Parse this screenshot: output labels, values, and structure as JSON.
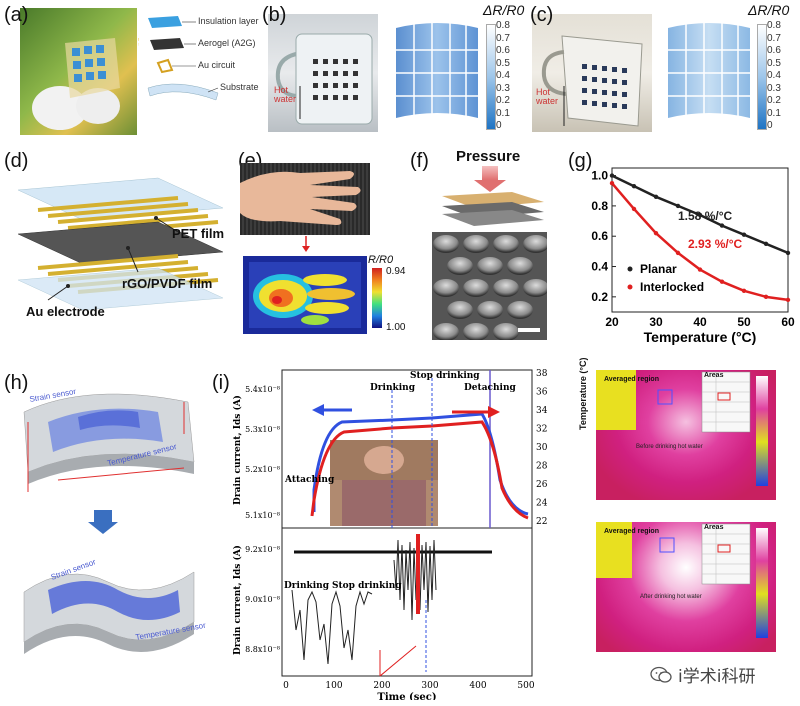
{
  "panels": {
    "a": {
      "label": "(a)",
      "layers": [
        "Insulation layer",
        "Aerogel (A2G)",
        "Au circuit",
        "Substrate"
      ]
    },
    "b": {
      "label": "(b)",
      "hot_water": "Hot\nwater",
      "colorbar_title": "ΔR/R0",
      "ticks": [
        "0.8",
        "0.7",
        "0.6",
        "0.5",
        "0.4",
        "0.3",
        "0.2",
        "0.1",
        "0"
      ]
    },
    "c": {
      "label": "(c)",
      "hot_water": "Hot\nwater",
      "colorbar_title": "ΔR/R0",
      "ticks": [
        "0.8",
        "0.7",
        "0.6",
        "0.5",
        "0.4",
        "0.3",
        "0.2",
        "0.1",
        "0"
      ]
    },
    "d": {
      "label": "(d)",
      "pet": "PET film",
      "rgo": "rGO/PVDF film",
      "au": "Au electrode"
    },
    "e": {
      "label": "(e)",
      "cb_title": "R/R0",
      "cb_top": "0.94",
      "cb_bottom": "1.00"
    },
    "f": {
      "label": "(f)",
      "pressure": "Pressure"
    },
    "g": {
      "label": "(g)",
      "annotation_planar": "1.58 %/°C",
      "annotation_interlocked": "2.93 %/°C",
      "legend": [
        "Planar",
        "Interlocked"
      ],
      "xlabel": "Temperature (°C)",
      "xticks": [
        "20",
        "30",
        "40",
        "50",
        "60"
      ],
      "yticks": [
        "0.2",
        "0.4",
        "0.6",
        "0.8",
        "1.0"
      ]
    },
    "h": {
      "label": "(h)",
      "strain": "Strain sensor",
      "temp": "Temperature sensor"
    },
    "i": {
      "label": "(i)",
      "ylabel_top": "Drain current, Ids (A)",
      "ylabel_bottom": "Drain current, Ids (A)",
      "xlabel": "Time (sec)",
      "top_yticks": [
        "5.4x10⁻⁸",
        "5.3x10⁻⁸",
        "5.2x10⁻⁸",
        "5.1x10⁻⁸"
      ],
      "right_yticks": [
        "38",
        "36",
        "34",
        "32",
        "30",
        "28",
        "26",
        "24",
        "22"
      ],
      "bottom_yticks": [
        "9.2x10⁻⁸",
        "9.0x10⁻⁸",
        "8.8x10⁻⁸"
      ],
      "xticks": [
        "0",
        "100",
        "200",
        "300",
        "400",
        "500"
      ],
      "ann_attaching": "Attaching",
      "ann_drinking": "Drinking",
      "ann_stop": "Stop drinking",
      "ann_detaching": "Detaching",
      "ann_drinking2": "Drinking",
      "ann_stop2": "Stop drinking"
    },
    "j": {
      "averaged_region": "Averaged region",
      "areas": "Areas",
      "before": "Before drinking hot water",
      "after": "After drinking hot water",
      "temp_label": "Temperature (°C)"
    }
  },
  "watermark": "i学术i科研",
  "chart_data": {
    "type": "scatter",
    "xlabel": "Temperature (°C)",
    "ylabel": "",
    "xlim": [
      20,
      60
    ],
    "ylim": [
      0.1,
      1.05
    ],
    "series": [
      {
        "name": "Planar",
        "x": [
          20,
          25,
          30,
          35,
          40,
          45,
          50,
          55,
          60
        ],
        "y": [
          1.0,
          0.93,
          0.86,
          0.8,
          0.74,
          0.67,
          0.61,
          0.55,
          0.49
        ]
      },
      {
        "name": "Interlocked",
        "x": [
          20,
          25,
          30,
          35,
          40,
          45,
          50,
          55,
          60
        ],
        "y": [
          0.95,
          0.78,
          0.62,
          0.49,
          0.38,
          0.3,
          0.24,
          0.2,
          0.18
        ]
      }
    ]
  }
}
